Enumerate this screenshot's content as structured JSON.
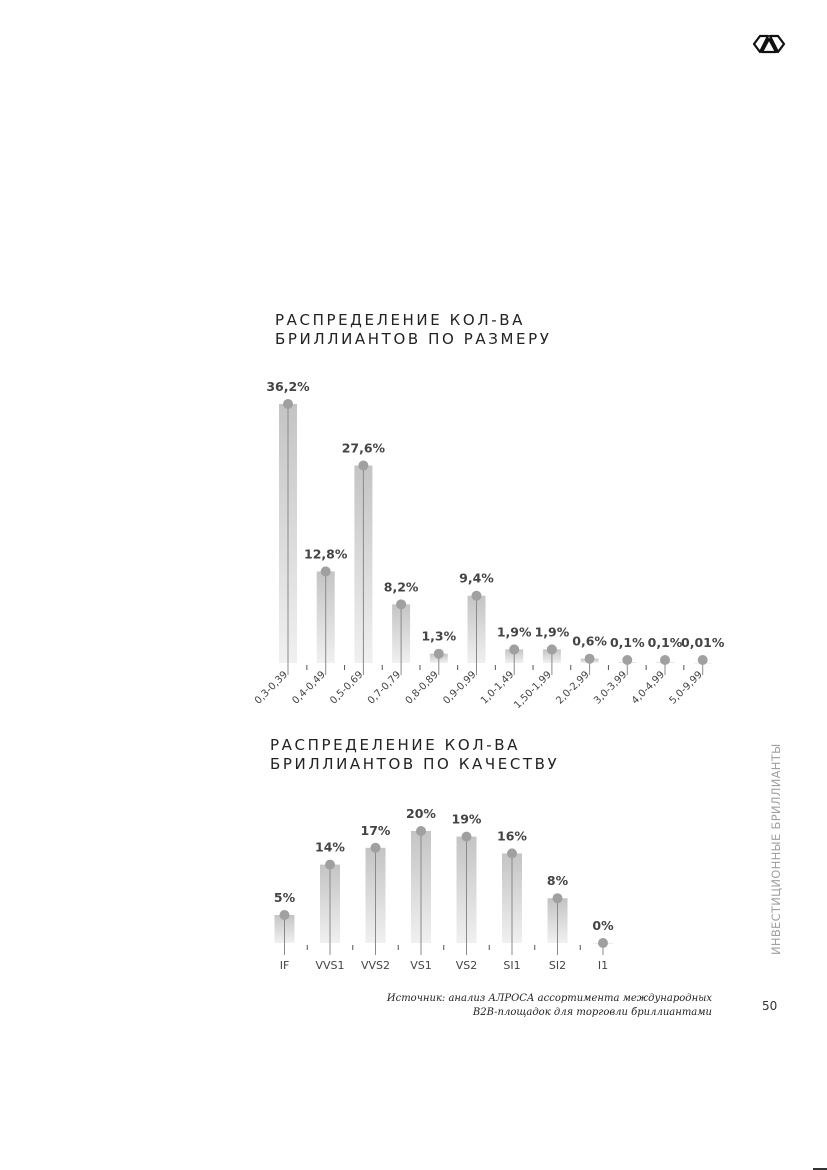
{
  "page": {
    "side_label": "ИНВЕСТИЦИОННЫЕ БРИЛЛИАНТЫ",
    "page_number": "50",
    "source_lines": [
      "Источник: анализ АЛРОСА ассортимента международных",
      "B2B-площадок для торговли бриллиантами"
    ],
    "logo_icon": "alrosa-logo-icon"
  },
  "colors": {
    "bar_top": "#c4c4c4",
    "bar_bottom": "#f0f0f0",
    "marker": "#a0a0a0",
    "stem": "#8a8a8a",
    "text": "#444444"
  },
  "chart_data": [
    {
      "type": "bar",
      "title_lines": [
        "РАСПРЕДЕЛЕНИЕ КОЛ-ВА",
        "БРИЛЛИАНТОВ ПО РАЗМЕРУ"
      ],
      "categories": [
        "0,3-0,39",
        "0,4-0,49",
        "0,5-0,69",
        "0,7-0,79",
        "0,8-0,89",
        "0,9-0,99",
        "1,0-1,49",
        "1,50-1,99",
        "2,0-2,99",
        "3,0-3,99",
        "4,0-4,99",
        "5,0-9,99"
      ],
      "values": [
        36.2,
        12.8,
        27.6,
        8.2,
        1.3,
        9.4,
        1.9,
        1.9,
        0.6,
        0.1,
        0.1,
        0.01
      ],
      "labels": [
        "36,2%",
        "12,8%",
        "27,6%",
        "8,2%",
        "1,3%",
        "9,4%",
        "1,9%",
        "1,9%",
        "0,6%",
        "0,1%",
        "0,1%",
        "0,01%"
      ],
      "ylim": [
        0,
        36.2
      ],
      "grid": false,
      "tick_label_rotation": "diagonal"
    },
    {
      "type": "bar",
      "title_lines": [
        "РАСПРЕДЕЛЕНИЕ КОЛ-ВА",
        "БРИЛЛИАНТОВ ПО КАЧЕСТВУ"
      ],
      "categories": [
        "IF",
        "VVS1",
        "VVS2",
        "VS1",
        "VS2",
        "SI1",
        "SI2",
        "I1"
      ],
      "values": [
        5,
        14,
        17,
        20,
        19,
        16,
        8,
        0
      ],
      "labels": [
        "5%",
        "14%",
        "17%",
        "20%",
        "19%",
        "16%",
        "8%",
        "0%"
      ],
      "ylim": [
        0,
        20
      ],
      "grid": false,
      "tick_label_rotation": "horizontal"
    }
  ]
}
